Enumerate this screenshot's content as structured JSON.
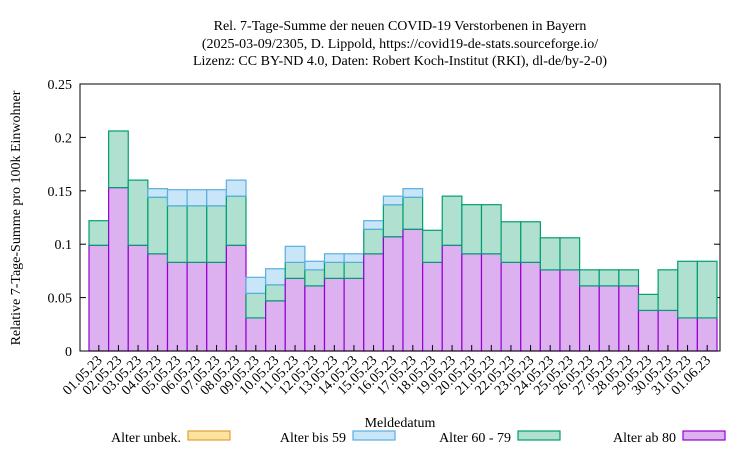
{
  "chart_data": {
    "type": "stacked_bar",
    "title": "Rel. 7-Tage-Summe der neuen COVID-19 Verstorbenen in Bayern",
    "subtitle": [
      "(2025-03-09/2305, D. Lippold, https://covid19-de-stats.sourceforge.io/",
      "Lizenz: CC BY-ND 4.0, Daten: Robert Koch-Institut (RKI), dl-de/by-2-0)"
    ],
    "x_label": "Meldedatum",
    "y_label": "Relative 7-Tage-Summe pro 100k Einwohner",
    "categories": [
      "01.05.23",
      "02.05.23",
      "03.05.23",
      "04.05.23",
      "05.05.23",
      "06.05.23",
      "07.05.23",
      "08.05.23",
      "09.05.23",
      "10.05.23",
      "11.05.23",
      "12.05.23",
      "13.05.23",
      "14.05.23",
      "15.05.23",
      "16.05.23",
      "17.05.23",
      "18.05.23",
      "19.05.23",
      "20.05.23",
      "21.05.23",
      "22.05.23",
      "23.05.23",
      "24.05.23",
      "25.05.23",
      "26.05.23",
      "27.05.23",
      "28.05.23",
      "29.05.23",
      "30.05.23",
      "31.05.23",
      "01.06.23"
    ],
    "series": [
      {
        "name": "Alter ab 80",
        "color": "#ddb0f0",
        "edge": "#9400d3",
        "values": [
          0.099,
          0.153,
          0.099,
          0.091,
          0.083,
          0.083,
          0.083,
          0.099,
          0.031,
          0.047,
          0.068,
          0.061,
          0.068,
          0.068,
          0.091,
          0.107,
          0.114,
          0.083,
          0.099,
          0.091,
          0.091,
          0.083,
          0.083,
          0.076,
          0.076,
          0.061,
          0.061,
          0.061,
          0.038,
          0.038,
          0.031,
          0.031
        ]
      },
      {
        "name": "Alter 60 - 79",
        "color": "#b0e0d0",
        "edge": "#009e73",
        "values": [
          0.023,
          0.053,
          0.061,
          0.053,
          0.053,
          0.053,
          0.053,
          0.046,
          0.023,
          0.015,
          0.015,
          0.015,
          0.015,
          0.015,
          0.023,
          0.03,
          0.03,
          0.03,
          0.046,
          0.046,
          0.046,
          0.038,
          0.038,
          0.03,
          0.03,
          0.015,
          0.015,
          0.015,
          0.015,
          0.038,
          0.053,
          0.053
        ]
      },
      {
        "name": "Alter bis 59",
        "color": "#c8e6f8",
        "edge": "#5aaee0",
        "values": [
          0,
          0,
          0,
          0.008,
          0.015,
          0.015,
          0.015,
          0.015,
          0.015,
          0.015,
          0.015,
          0.008,
          0.008,
          0.008,
          0.008,
          0.008,
          0.008,
          0,
          0,
          0,
          0,
          0,
          0,
          0,
          0,
          0,
          0,
          0,
          0,
          0,
          0,
          0
        ]
      },
      {
        "name": "Alter unbek.",
        "color": "#fde2a0",
        "edge": "#e0a030",
        "values": [
          0,
          0,
          0,
          0,
          0,
          0,
          0,
          0,
          0,
          0,
          0,
          0,
          0,
          0,
          0,
          0,
          0,
          0,
          0,
          0,
          0,
          0,
          0,
          0,
          0,
          0,
          0,
          0,
          0,
          0,
          0,
          0
        ]
      }
    ],
    "ylim": [
      0,
      0.25
    ],
    "yticks": [
      0,
      0.05,
      0.1,
      0.15,
      0.2,
      0.25
    ]
  }
}
